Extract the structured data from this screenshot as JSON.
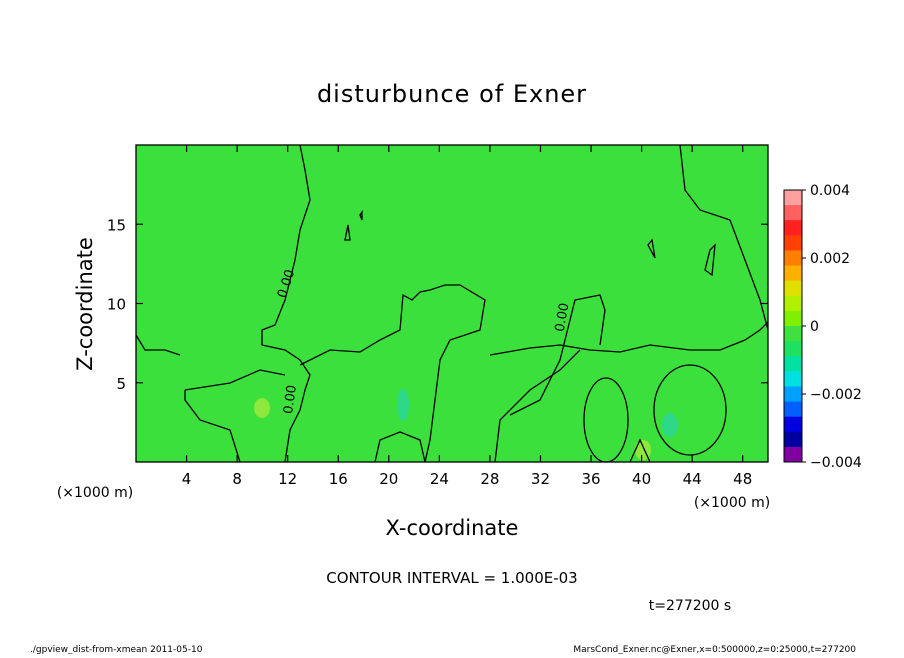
{
  "chart_data": {
    "type": "contour",
    "title": "disturbunce of Exner",
    "xlabel": "X-coordinate",
    "ylabel": "Z-coordinate",
    "x_unit": "(×1000 m)",
    "xlim": [
      0,
      50
    ],
    "ylim": [
      0,
      20
    ],
    "xticks": [
      4,
      8,
      12,
      16,
      20,
      24,
      28,
      32,
      36,
      40,
      44,
      48
    ],
    "yticks": [
      5,
      10,
      15
    ],
    "background_color": "#3ce03c",
    "contour_labels": [
      {
        "value": 0,
        "label": "0.00"
      },
      {
        "value": 0,
        "label": "0.00"
      },
      {
        "value": 0,
        "label": "0.00"
      }
    ],
    "colorbar": {
      "lim": [
        -0.004,
        0.004
      ],
      "ticks": [
        0.004,
        0.002,
        0,
        {
          "value": -0.002,
          "label": "−0.002"
        },
        {
          "value": -0.004,
          "label": "−0.004"
        }
      ],
      "colors": [
        "#ffa0a0",
        "#ff6060",
        "#ff2020",
        "#ff4000",
        "#ff8000",
        "#ffb000",
        "#e0e000",
        "#b0f000",
        "#80f000",
        "#40e040",
        "#20e060",
        "#00e0a0",
        "#00e0e0",
        "#00a0ff",
        "#0060ff",
        "#0000e0",
        "#0000a0",
        "#8000a0"
      ]
    },
    "annotations": [
      "CONTOUR INTERVAL = 1.000E-03",
      "t=277200 s"
    ],
    "footer_left": "./gpview_dist-from-xmean  2011-05-10",
    "footer_right": "MarsCond_Exner.nc@Exner,x=0:500000,z=0:25000,t=277200"
  }
}
